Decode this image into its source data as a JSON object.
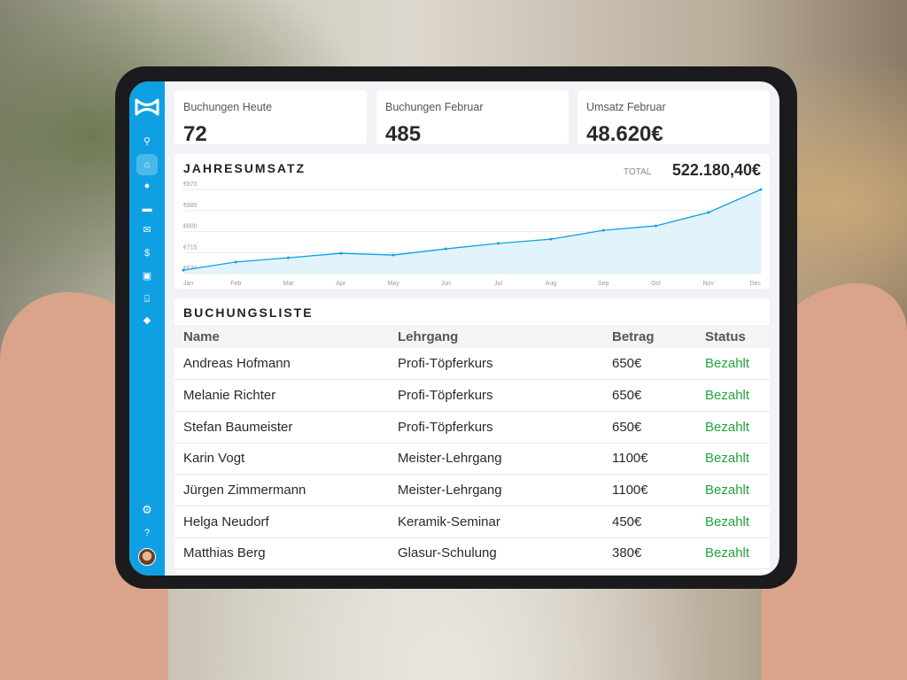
{
  "kpis": [
    {
      "label": "Buchungen Heute",
      "value": "72"
    },
    {
      "label": "Buchungen Februar",
      "value": "485"
    },
    {
      "label": "Umsatz Februar",
      "value": "48.620€"
    }
  ],
  "revenue": {
    "title": "JAHRESUMSATZ",
    "total_label": "TOTAL",
    "total_value": "522.180,40€"
  },
  "chart_data": {
    "type": "area",
    "categories": [
      "Jan",
      "Feb",
      "Mar",
      "Apr",
      "May",
      "Jun",
      "Jul",
      "Aug",
      "Sep",
      "Oct",
      "Nov",
      "Dec"
    ],
    "values": [
      644,
      677,
      694,
      712,
      705,
      730,
      752,
      769,
      805,
      823,
      877,
      970
    ],
    "yticks": [
      "€970",
      "€885",
      "€800",
      "€715",
      "€630"
    ],
    "ylim": [
      630,
      970
    ],
    "grid": true,
    "color": "#0fa0e3"
  },
  "bookings": {
    "title": "BUCHUNGSLISTE",
    "columns": [
      "Name",
      "Lehrgang",
      "Betrag",
      "Status"
    ],
    "rows": [
      [
        "Andreas Hofmann",
        "Profi-Töpferkurs",
        "650€",
        "Bezahlt"
      ],
      [
        "Melanie Richter",
        "Profi-Töpferkurs",
        "650€",
        "Bezahlt"
      ],
      [
        "Stefan Baumeister",
        "Profi-Töpferkurs",
        "650€",
        "Bezahlt"
      ],
      [
        "Karin Vogt",
        "Meister-Lehrgang",
        "1100€",
        "Bezahlt"
      ],
      [
        "Jürgen Zimmermann",
        "Meister-Lehrgang",
        "1100€",
        "Bezahlt"
      ],
      [
        "Helga Neudorf",
        "Keramik-Seminar",
        "450€",
        "Bezahlt"
      ],
      [
        "Matthias Berg",
        "Glasur-Schulung",
        "380€",
        "Bezahlt"
      ]
    ]
  },
  "sidebar": {
    "icons": [
      "logo-icon",
      "search-icon",
      "home-icon",
      "user-icon",
      "contact-card-icon",
      "mail-icon",
      "invoice-icon",
      "money-icon",
      "bank-icon",
      "tag-icon",
      "settings-icon",
      "help-icon",
      "avatar"
    ]
  }
}
